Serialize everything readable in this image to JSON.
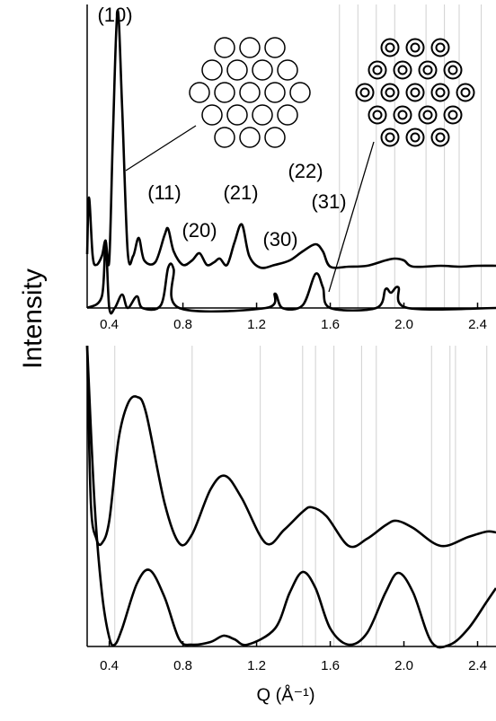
{
  "chart_data": [
    {
      "type": "line",
      "ylabel": "Intensity",
      "xlim": [
        0.28,
        2.5
      ],
      "ylim": [
        0,
        338
      ],
      "xticks": [
        0.4,
        0.8,
        1.2,
        1.6,
        {
          "value": 2,
          "label": "2.0"
        },
        2.4
      ],
      "reference_lines": [
        1.65,
        1.75,
        1.85,
        1.95,
        2.12,
        2.22,
        2.3,
        2.42
      ],
      "annotations": [
        "(10)",
        "(11)",
        "(20)",
        "(21)",
        "(30)",
        "(22)",
        "(31)"
      ],
      "series": [
        {
          "color": "#000000",
          "x": [
            0.28,
            0.29,
            0.31,
            0.33,
            0.36,
            0.38,
            0.4,
            0.42,
            0.445,
            0.47,
            0.5,
            0.53,
            0.56,
            0.59,
            0.65,
            0.7,
            0.72,
            0.75,
            0.8,
            0.85,
            0.89,
            0.93,
            0.97,
            1.0,
            1.04,
            1.08,
            1.12,
            1.16,
            1.22,
            1.3,
            1.38,
            1.45,
            1.52,
            1.56,
            1.6,
            1.7,
            1.8,
            1.9,
            1.95,
            2.0,
            2.05,
            2.2,
            2.3,
            2.4,
            2.5
          ],
          "values": [
            60,
            123,
            58,
            48,
            58,
            75,
            53,
            193,
            331,
            223,
            63,
            58,
            78,
            53,
            51,
            81,
            88,
            63,
            48,
            53,
            61,
            48,
            51,
            55,
            48,
            73,
            93,
            58,
            45,
            48,
            53,
            63,
            71,
            63,
            46,
            46,
            47,
            53,
            55,
            53,
            46,
            47,
            46,
            47,
            47
          ]
        },
        {
          "color": "#000000",
          "x": [
            0.28,
            0.36,
            0.38,
            0.4,
            0.43,
            0.47,
            0.5,
            0.55,
            0.58,
            0.68,
            0.72,
            0.75,
            0.78,
            1.25,
            1.3,
            1.34,
            1.45,
            1.52,
            1.56,
            1.6,
            1.85,
            1.9,
            1.93,
            1.97,
            2.02,
            2.5
          ],
          "values": [
            0,
            13,
            75,
            0,
            0,
            15,
            0,
            13,
            0,
            3,
            45,
            43,
            0,
            0,
            16,
            0,
            3,
            38,
            23,
            0,
            0,
            21,
            17,
            23,
            0,
            0
          ]
        }
      ]
    },
    {
      "type": "line",
      "xlabel": "Q (Å⁻¹)",
      "xlim": [
        0.28,
        2.5
      ],
      "ylim": [
        0,
        335
      ],
      "xticks": [
        0.4,
        0.8,
        1.2,
        1.6,
        {
          "value": 2,
          "label": "2.0"
        },
        2.4
      ],
      "reference_lines": [
        0.43,
        0.85,
        1.22,
        1.45,
        1.52,
        1.62,
        1.77,
        1.85,
        2.15,
        2.25,
        2.28,
        2.45
      ],
      "series": [
        {
          "color": "#000000",
          "x": [
            0.28,
            0.3,
            0.33,
            0.36,
            0.4,
            0.45,
            0.5,
            0.55,
            0.6,
            0.7,
            0.78,
            0.85,
            0.95,
            1.03,
            1.12,
            1.25,
            1.35,
            1.45,
            1.5,
            1.58,
            1.7,
            1.8,
            1.9,
            1.96,
            2.05,
            2.2,
            2.35,
            2.45,
            2.5
          ],
          "values": [
            335,
            160,
            120,
            115,
            140,
            230,
            270,
            278,
            260,
            160,
            115,
            125,
            175,
            190,
            165,
            115,
            130,
            150,
            155,
            145,
            112,
            120,
            135,
            140,
            132,
            112,
            122,
            128,
            127
          ]
        },
        {
          "color": "#000000",
          "x": [
            0.28,
            0.32,
            0.36,
            0.4,
            0.43,
            0.47,
            0.55,
            0.62,
            0.7,
            0.78,
            0.85,
            0.95,
            1.02,
            1.08,
            1.15,
            1.3,
            1.38,
            1.45,
            1.52,
            1.6,
            1.7,
            1.8,
            1.9,
            1.97,
            2.05,
            2.15,
            2.25,
            2.35,
            2.45,
            2.5
          ],
          "values": [
            335,
            160,
            60,
            10,
            2,
            20,
            70,
            85,
            55,
            8,
            2,
            5,
            12,
            8,
            2,
            20,
            60,
            83,
            65,
            20,
            2,
            15,
            60,
            82,
            60,
            5,
            2,
            20,
            50,
            65
          ]
        }
      ]
    }
  ]
}
